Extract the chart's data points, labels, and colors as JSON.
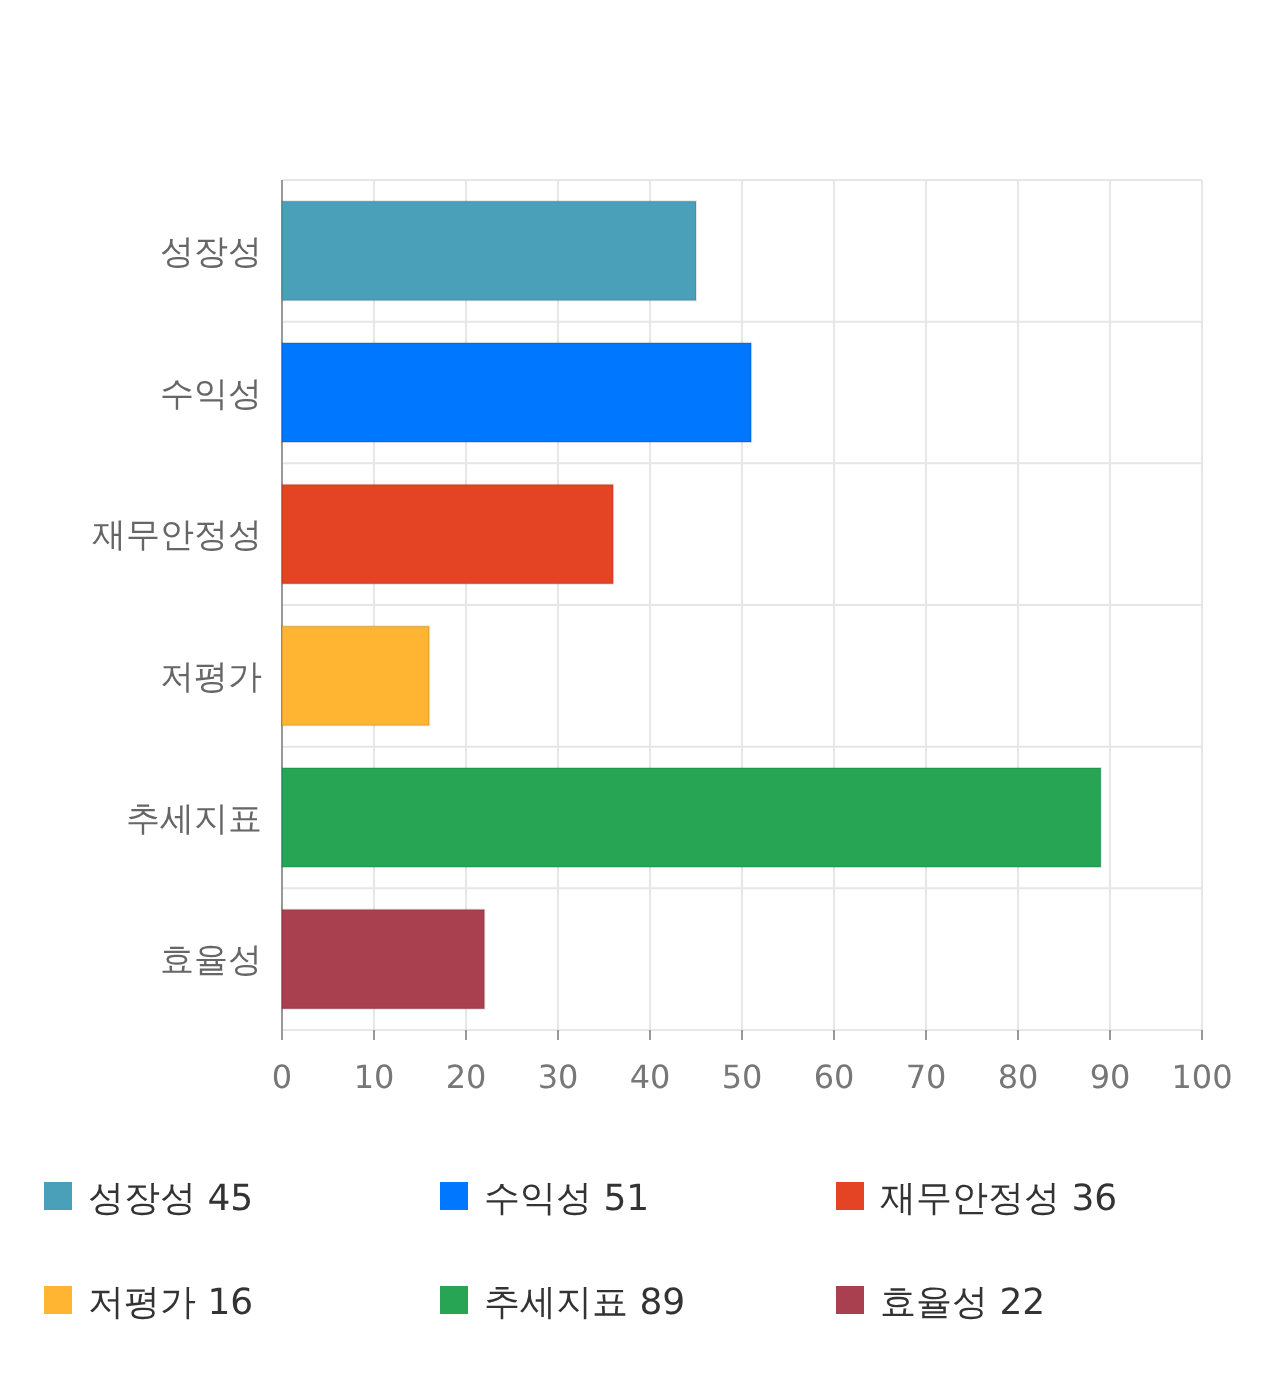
{
  "chart_data": {
    "type": "bar",
    "orientation": "horizontal",
    "categories": [
      "성장성",
      "수익성",
      "재무안정성",
      "저평가",
      "추세지표",
      "효율성"
    ],
    "series": [
      {
        "name": "성장성 45",
        "color": "#4aa0b9",
        "values": [
          45,
          null,
          null,
          null,
          null,
          null
        ]
      },
      {
        "name": "수익성 51",
        "color": "#0077ff",
        "values": [
          null,
          51,
          null,
          null,
          null,
          null
        ]
      },
      {
        "name": "재무안정성 36",
        "color": "#e44423",
        "values": [
          null,
          null,
          36,
          null,
          null,
          null
        ]
      },
      {
        "name": "저평가 16",
        "color": "#ffb531",
        "values": [
          null,
          null,
          null,
          16,
          null,
          null
        ]
      },
      {
        "name": "추세지표 89",
        "color": "#27a555",
        "values": [
          null,
          null,
          null,
          null,
          89,
          null
        ]
      },
      {
        "name": "효율성 22",
        "color": "#a8404f",
        "values": [
          null,
          null,
          null,
          null,
          null,
          22
        ]
      }
    ],
    "xlim": [
      0,
      100
    ],
    "xticks": [
      0,
      10,
      20,
      30,
      40,
      50,
      60,
      70,
      80,
      90,
      100
    ],
    "grid": true,
    "legend": "bottom"
  }
}
